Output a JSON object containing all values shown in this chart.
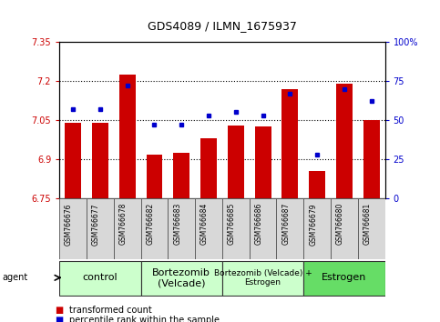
{
  "title": "GDS4089 / ILMN_1675937",
  "samples": [
    "GSM766676",
    "GSM766677",
    "GSM766678",
    "GSM766682",
    "GSM766683",
    "GSM766684",
    "GSM766685",
    "GSM766686",
    "GSM766687",
    "GSM766679",
    "GSM766680",
    "GSM766681"
  ],
  "bar_values": [
    7.04,
    7.04,
    7.225,
    6.915,
    6.925,
    6.98,
    7.03,
    7.025,
    7.17,
    6.855,
    7.19,
    7.05
  ],
  "bar_base": 6.75,
  "dot_values": [
    57,
    57,
    72,
    47,
    47,
    53,
    55,
    53,
    67,
    28,
    70,
    62
  ],
  "bar_color": "#cc0000",
  "dot_color": "#0000cc",
  "ylim_left": [
    6.75,
    7.35
  ],
  "ylim_right": [
    0,
    100
  ],
  "yticks_left": [
    6.75,
    6.9,
    7.05,
    7.2,
    7.35
  ],
  "yticks_right": [
    0,
    25,
    50,
    75,
    100
  ],
  "ytick_labels_left": [
    "6.75",
    "6.9",
    "7.05",
    "7.2",
    "7.35"
  ],
  "ytick_labels_right": [
    "0",
    "25",
    "50",
    "75",
    "100%"
  ],
  "hlines": [
    6.9,
    7.05,
    7.2
  ],
  "groups": [
    {
      "label": "control",
      "start": 0,
      "end": 3,
      "color": "#ccffcc",
      "fontsize": 8
    },
    {
      "label": "Bortezomib\n(Velcade)",
      "start": 3,
      "end": 6,
      "color": "#ccffcc",
      "fontsize": 8
    },
    {
      "label": "Bortezomib (Velcade) +\nEstrogen",
      "start": 6,
      "end": 9,
      "color": "#ccffcc",
      "fontsize": 6.5
    },
    {
      "label": "Estrogen",
      "start": 9,
      "end": 12,
      "color": "#66dd66",
      "fontsize": 8
    }
  ],
  "agent_label": "agent",
  "legend_bar": "transformed count",
  "legend_dot": "percentile rank within the sample",
  "title_fontsize": 9,
  "tick_fontsize": 7,
  "sample_fontsize": 5.5
}
